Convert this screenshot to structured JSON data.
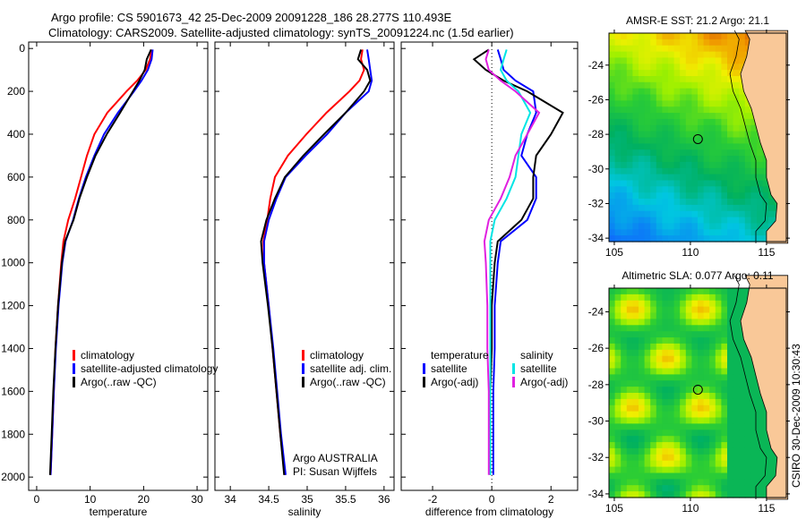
{
  "title_line1": "Argo profile: CS 5901673_42 25-Dec-2009 20091228_186 28.277S 110.493E",
  "title_line2": "Climatology: CARS2009. Satellite-adjusted climatology: synTS_20091224.nc (1.5d earlier)",
  "footer_stamp": "CSIRO 30-Dec-2009 10:30:43",
  "credit": {
    "line1": "Argo AUSTRALIA",
    "line2": "PI: Susan Wijffels"
  },
  "colors": {
    "climatology": "#ff0000",
    "satellite": "#0000ff",
    "argo": "#000000",
    "sal_satellite": "#00e5e5",
    "sal_argo": "#e020e0",
    "land": "#f9c898"
  },
  "legends": {
    "temperature": [
      "climatology",
      "satellite-adjusted climatology",
      "Argo(..raw -QC)"
    ],
    "salinity": [
      "climatology",
      "satellite adj. clim.",
      "Argo(..raw -QC)"
    ],
    "difference": {
      "temp_header": "temperature",
      "sal_header": "salinity",
      "temp_items": [
        "satellite",
        "Argo(-adj)"
      ],
      "sal_items": [
        "satellite",
        "Argo(-adj)"
      ]
    }
  },
  "chart_data": [
    {
      "type": "line",
      "xlabel": "temperature",
      "ylabel": "",
      "ylim": [
        2000,
        0
      ],
      "xlim": [
        -1.5,
        32
      ],
      "xticks": [
        0,
        10,
        20,
        30
      ],
      "yticks": [
        0,
        200,
        400,
        600,
        800,
        1000,
        1200,
        1400,
        1600,
        1800,
        2000
      ],
      "depth": [
        5,
        50,
        100,
        150,
        200,
        300,
        400,
        500,
        600,
        700,
        800,
        900,
        1000,
        1200,
        1400,
        1600,
        1800,
        1990
      ],
      "series": [
        {
          "name": "climatology",
          "values": [
            21.5,
            21.2,
            20.4,
            18.8,
            16.8,
            13.2,
            10.8,
            9.4,
            8.3,
            7.2,
            5.9,
            5.0,
            4.6,
            4.0,
            3.5,
            3.2,
            2.9,
            2.6
          ]
        },
        {
          "name": "satellite-adjusted climatology",
          "values": [
            21.7,
            21.5,
            20.8,
            19.6,
            18.2,
            15.2,
            12.6,
            10.8,
            9.2,
            7.9,
            6.8,
            5.4,
            4.8,
            4.1,
            3.6,
            3.2,
            2.9,
            2.6
          ]
        },
        {
          "name": "Argo(..raw -QC)",
          "values": [
            21.4,
            20.6,
            20.2,
            19.2,
            18.0,
            15.6,
            13.1,
            11.0,
            9.4,
            8.0,
            6.9,
            5.3,
            4.7,
            4.0,
            3.5,
            3.1,
            2.8,
            2.5
          ]
        }
      ]
    },
    {
      "type": "line",
      "xlabel": "salinity",
      "ylabel": "",
      "ylim": [
        2000,
        0
      ],
      "xlim": [
        33.8,
        36.13
      ],
      "xticks": [
        34,
        34.5,
        35,
        35.5,
        36
      ],
      "depth": [
        5,
        50,
        100,
        150,
        200,
        300,
        400,
        500,
        600,
        700,
        800,
        900,
        1000,
        1200,
        1400,
        1600,
        1800,
        1990
      ],
      "series": [
        {
          "name": "climatology",
          "values": [
            35.72,
            35.7,
            35.74,
            35.68,
            35.55,
            35.25,
            34.99,
            34.75,
            34.58,
            34.52,
            34.48,
            34.43,
            34.44,
            34.5,
            34.55,
            34.6,
            34.65,
            34.71
          ]
        },
        {
          "name": "satellite adj. clim.",
          "values": [
            35.78,
            35.8,
            35.82,
            35.84,
            35.8,
            35.5,
            35.26,
            34.98,
            34.72,
            34.6,
            34.5,
            34.44,
            34.44,
            34.5,
            34.56,
            34.61,
            34.66,
            34.72
          ]
        },
        {
          "name": "Argo(..raw -QC)",
          "values": [
            35.7,
            35.66,
            35.78,
            35.82,
            35.74,
            35.5,
            35.22,
            34.95,
            34.71,
            34.58,
            34.47,
            34.4,
            34.42,
            34.49,
            34.55,
            34.6,
            34.65,
            34.7
          ]
        }
      ]
    },
    {
      "type": "line",
      "xlabel": "difference from climatology",
      "ylabel": "",
      "ylim": [
        2000,
        0
      ],
      "xlim": [
        -3.06,
        2.9
      ],
      "xticks": [
        -2,
        0,
        2
      ],
      "depth": [
        5,
        50,
        100,
        150,
        200,
        300,
        400,
        500,
        600,
        700,
        800,
        900,
        1000,
        1200,
        1400,
        1600,
        1800,
        1990
      ],
      "series": [
        {
          "name": "temperature satellite",
          "values": [
            0.2,
            0.3,
            0.4,
            0.8,
            1.4,
            1.5,
            1.2,
            1.0,
            1.5,
            1.5,
            1.2,
            0.3,
            0.2,
            0.1,
            0.1,
            0.05,
            0.05,
            0.05
          ]
        },
        {
          "name": "temperature Argo(-adj)",
          "values": [
            -0.1,
            -0.6,
            -0.2,
            0.4,
            1.2,
            2.4,
            2.0,
            1.5,
            1.4,
            1.4,
            1.0,
            0.2,
            0.1,
            0.0,
            0.0,
            -0.05,
            -0.05,
            -0.05
          ]
        },
        {
          "name": "salinity satellite",
          "values": [
            0.5,
            0.4,
            0.3,
            0.5,
            0.9,
            1.3,
            1.0,
            0.9,
            0.8,
            0.5,
            0.1,
            -0.05,
            -0.05,
            -0.05,
            -0.05,
            -0.05,
            -0.05,
            -0.05
          ]
        },
        {
          "name": "salinity Argo(-adj)",
          "values": [
            -0.1,
            -0.2,
            -0.1,
            0.3,
            0.8,
            1.6,
            1.2,
            0.8,
            0.6,
            0.3,
            -0.1,
            -0.25,
            -0.2,
            -0.15,
            -0.15,
            -0.1,
            -0.1,
            -0.1
          ]
        }
      ]
    },
    {
      "type": "heatmap",
      "title": "AMSR-E SST: 21.2 Argo: 21.1",
      "xticks": [
        105,
        110,
        115
      ],
      "yticks": [
        -24,
        -26,
        -28,
        -30,
        -32,
        -34
      ],
      "xlim": [
        104.65,
        116.3
      ],
      "ylim": [
        -34.2,
        -22.15
      ],
      "marker": {
        "lon": 110.493,
        "lat": -28.277
      }
    },
    {
      "type": "heatmap",
      "title": "Altimetric SLA: 0.077 Argo: 0.11",
      "xticks": [
        105,
        110,
        115
      ],
      "yticks": [
        -24,
        -26,
        -28,
        -30,
        -32,
        -34
      ],
      "xlim": [
        104.65,
        116.3
      ],
      "ylim": [
        -34.2,
        -22.7
      ],
      "marker": {
        "lon": 110.493,
        "lat": -28.277
      }
    }
  ]
}
